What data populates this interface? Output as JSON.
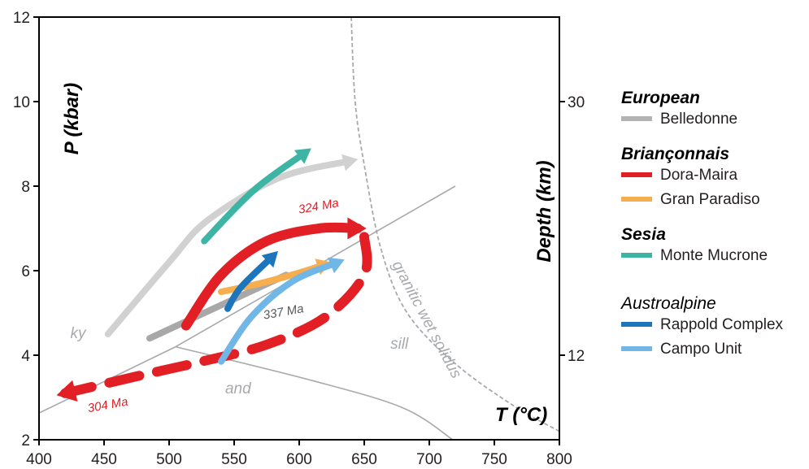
{
  "chart_data": {
    "type": "line",
    "xlabel": "T (°C)",
    "ylabel": "P (kbar)",
    "y2label": "Depth (km)",
    "xlim": [
      400,
      800
    ],
    "ylim": [
      2,
      12
    ],
    "x_ticks": [
      "400",
      "450",
      "500",
      "550",
      "600",
      "650",
      "700",
      "750",
      "800"
    ],
    "y_ticks": [
      "2",
      "4",
      "6",
      "8",
      "10",
      "12"
    ],
    "y2_ticks": [
      {
        "label": "12",
        "at_pressure": 4
      },
      {
        "label": "30",
        "at_pressure": 10
      }
    ],
    "grid": false,
    "legend_position": "right",
    "phase_boundaries": [
      {
        "id": "ky-and",
        "points": [
          [
            400,
            2.63
          ],
          [
            505,
            4.2
          ]
        ]
      },
      {
        "id": "ky-sill",
        "points": [
          [
            505,
            4.2
          ],
          [
            720,
            8.0
          ]
        ]
      },
      {
        "id": "and-sill",
        "points": [
          [
            505,
            4.2
          ],
          [
            610,
            3.4
          ],
          [
            680,
            2.75
          ],
          [
            718,
            2.0
          ]
        ]
      }
    ],
    "solidus": {
      "label": "granitic wet solidus",
      "points": [
        [
          640,
          12.0
        ],
        [
          643,
          10.0
        ],
        [
          650,
          8.5
        ],
        [
          663,
          6.5
        ],
        [
          683,
          5.0
        ],
        [
          720,
          3.8
        ],
        [
          765,
          2.8
        ],
        [
          800,
          2.2
        ]
      ]
    },
    "field_labels": [
      {
        "text": "ky",
        "x": 430,
        "y": 4.4
      },
      {
        "text": "and",
        "x": 553,
        "y": 3.1
      },
      {
        "text": "sill",
        "x": 677,
        "y": 4.15
      }
    ],
    "series": [
      {
        "name": "Belledonne",
        "group": "European",
        "color": "#b3b3b3",
        "paths": [
          {
            "points": [
              [
                453,
                4.5
              ],
              [
                500,
                6.2
              ],
              [
                530,
                7.2
              ],
              [
                585,
                8.2
              ],
              [
                640,
                8.6
              ]
            ],
            "color": "#d1d1d1",
            "arrow": true
          },
          {
            "points": [
              [
                485,
                4.4
              ],
              [
                590,
                5.9
              ]
            ],
            "color": "#a8a8a8",
            "arrow": false
          }
        ]
      },
      {
        "name": "Dora-Maira",
        "group": "Briançonnais",
        "color": "#e31f26",
        "paths": [
          {
            "points": [
              [
                513,
                4.7
              ],
              [
                540,
                5.9
              ],
              [
                575,
                6.7
              ],
              [
                615,
                7.0
              ],
              [
                645,
                7.0
              ]
            ],
            "arrow": true,
            "dashed": false
          },
          {
            "points": [
              [
                650,
                6.8
              ],
              [
                650,
                5.9
              ],
              [
                620,
                4.9
              ],
              [
                575,
                4.25
              ],
              [
                525,
                3.85
              ],
              [
                475,
                3.5
              ],
              [
                420,
                3.1
              ]
            ],
            "arrow": true,
            "dashed": true
          }
        ]
      },
      {
        "name": "Gran Paradiso",
        "group": "Briançonnais",
        "color": "#f7ae4f",
        "paths": [
          {
            "points": [
              [
                540,
                5.5
              ],
              [
                570,
                5.7
              ],
              [
                600,
                5.95
              ],
              [
                620,
                6.15
              ]
            ],
            "arrow": true
          }
        ]
      },
      {
        "name": "Monte Mucrone",
        "group": "Sesia",
        "color": "#3db4a4",
        "paths": [
          {
            "points": [
              [
                527,
                6.7
              ],
              [
                565,
                7.9
              ],
              [
                605,
                8.8
              ]
            ],
            "arrow": true
          }
        ]
      },
      {
        "name": "Rappold Complex",
        "group": "Austroalpine",
        "color": "#1d75bb",
        "paths": [
          {
            "points": [
              [
                545,
                5.1
              ],
              [
                555,
                5.6
              ],
              [
                580,
                6.35
              ]
            ],
            "arrow": true
          }
        ]
      },
      {
        "name": "Campo Unit",
        "group": "Austroalpine",
        "color": "#70b6e6",
        "paths": [
          {
            "points": [
              [
                540,
                3.85
              ],
              [
                563,
                4.9
              ],
              [
                595,
                5.75
              ],
              [
                630,
                6.2
              ]
            ],
            "arrow": true
          }
        ]
      }
    ],
    "age_annotations": [
      {
        "text": "324 Ma",
        "x": 600,
        "y": 7.35,
        "color": "#e31f26"
      },
      {
        "text": "337 Ma",
        "x": 573,
        "y": 4.85,
        "color": "#58595b"
      },
      {
        "text": "304 Ma",
        "x": 438,
        "y": 2.65,
        "color": "#e31f26"
      }
    ],
    "legend": [
      {
        "group": "European",
        "items": [
          "Belledonne"
        ]
      },
      {
        "group": "Briançonnais",
        "items": [
          "Dora-Maira",
          "Gran Paradiso"
        ]
      },
      {
        "group": "Sesia",
        "items": [
          "Monte Mucrone"
        ]
      },
      {
        "group": "Austroalpine",
        "items": [
          "Rappold Complex",
          "Campo Unit"
        ]
      }
    ]
  }
}
